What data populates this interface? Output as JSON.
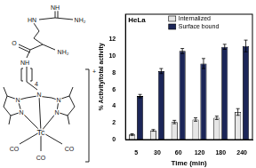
{
  "chart_data": {
    "type": "bar",
    "annotations": [
      "HeLa"
    ],
    "y_label": "% Activity/total activity",
    "x_label": "Time (min)",
    "categories": [
      "5",
      "30",
      "60",
      "120",
      "180",
      "240"
    ],
    "series": [
      {
        "name": "Internalized",
        "color": "#e6e6e6",
        "values": [
          0.6,
          1.1,
          2.1,
          2.4,
          2.6,
          3.3
        ],
        "errors": [
          0.1,
          0.1,
          0.2,
          0.2,
          0.2,
          0.4
        ]
      },
      {
        "name": "Surface bound",
        "color": "#1c2658",
        "values": [
          5.2,
          8.2,
          10.6,
          9.1,
          11.1,
          11.2
        ],
        "errors": [
          0.2,
          0.3,
          0.3,
          0.6,
          0.3,
          0.7
        ]
      }
    ],
    "ylim": [
      0,
      15
    ],
    "yticks": [
      0,
      2,
      4,
      6,
      8,
      10,
      12
    ],
    "grid": false,
    "legend": "top"
  },
  "structure": {
    "labels": [
      "NH",
      "NH₂",
      "HN",
      "O",
      "NH₂",
      "NH",
      "4",
      "N",
      "N",
      "N",
      "N",
      "N",
      "Tc",
      "CO",
      "CO",
      "CO",
      "+"
    ]
  }
}
